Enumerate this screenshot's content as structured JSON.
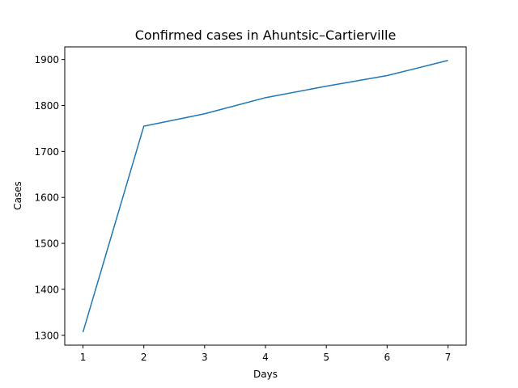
{
  "chart_data": {
    "type": "line",
    "title": "Confirmed cases in Ahuntsic–Cartierville",
    "xlabel": "Days",
    "ylabel": "Cases",
    "x": [
      1,
      2,
      3,
      4,
      5,
      6,
      7
    ],
    "series": [
      {
        "values": [
          1307,
          1755,
          1782,
          1817,
          1842,
          1865,
          1898
        ],
        "color": "#1f77b4"
      }
    ],
    "xticks": [
      1,
      2,
      3,
      4,
      5,
      6,
      7
    ],
    "yticks": [
      1300,
      1400,
      1500,
      1600,
      1700,
      1800,
      1900
    ],
    "xlim": [
      0.7,
      7.3
    ],
    "ylim": [
      1278.5,
      1927.5
    ],
    "grid": false
  }
}
